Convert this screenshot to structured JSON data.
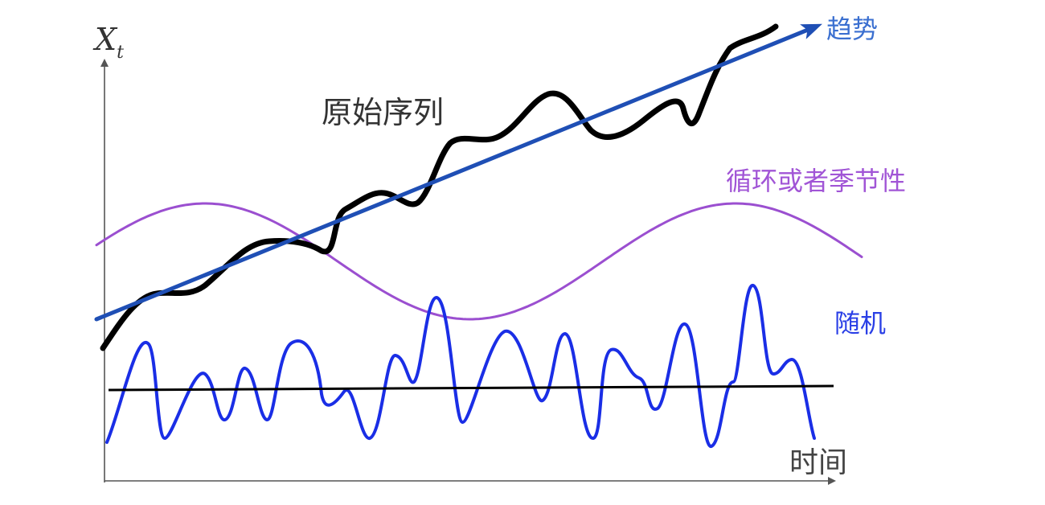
{
  "labels": {
    "y_axis": "X",
    "y_axis_sub": "t",
    "x_axis": "时间",
    "original_series": "原始序列",
    "trend": "趋势",
    "seasonal": "循环或者季节性",
    "random": "随机"
  },
  "colors": {
    "axis": "#555555",
    "original": "#000000",
    "trend": "#1f4fb5",
    "seasonal": "#9b4fd0",
    "random": "#1a2ee6",
    "baseline": "#000000",
    "label_dark": "#333333",
    "label_trend": "#3a6fd0",
    "label_seasonal": "#a155d6",
    "label_random": "#2a3fe6"
  }
}
